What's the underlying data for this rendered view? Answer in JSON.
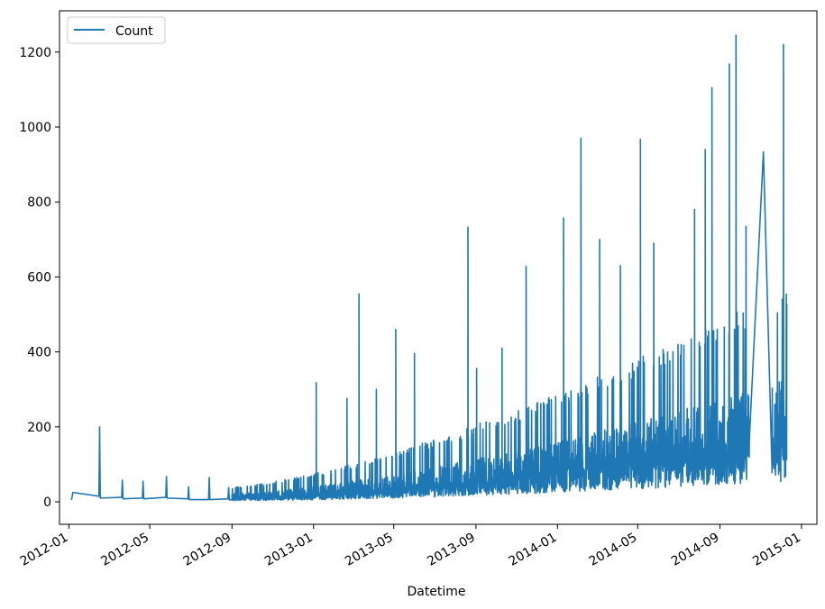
{
  "chart_data": {
    "type": "line",
    "title": "",
    "xlabel": "Datetime",
    "ylabel": "",
    "x_ticks": [
      "2012-01",
      "2012-05",
      "2012-09",
      "2013-01",
      "2013-05",
      "2013-09",
      "2014-01",
      "2014-05",
      "2014-09",
      "2015-01"
    ],
    "y_ticks": [
      0,
      200,
      400,
      600,
      800,
      1000,
      1200
    ],
    "ylim": [
      -60,
      1310
    ],
    "xlim": [
      "2011-12-18",
      "2015-01-24"
    ],
    "legend": {
      "position": "top-left",
      "entries": [
        "Count"
      ]
    },
    "grid": false,
    "colors": {
      "series": "#1f77b4",
      "axes": "#000000"
    },
    "series": [
      {
        "name": "Count",
        "description": "Hourly counts; sparse early 2012, dense and rising from 2013 to late 2014",
        "sparse_points": [
          [
            "2012-01-07",
            25
          ],
          [
            "2012-02-15",
            15
          ],
          [
            "2012-02-16",
            200
          ],
          [
            "2012-02-17",
            10
          ],
          [
            "2012-03-20",
            12
          ],
          [
            "2012-03-21",
            58
          ],
          [
            "2012-03-22",
            8
          ],
          [
            "2012-04-20",
            10
          ],
          [
            "2012-04-21",
            55
          ],
          [
            "2012-04-22",
            8
          ],
          [
            "2012-05-25",
            12
          ],
          [
            "2012-05-26",
            68
          ],
          [
            "2012-05-27",
            10
          ],
          [
            "2012-06-27",
            8
          ],
          [
            "2012-06-28",
            40
          ],
          [
            "2012-06-29",
            6
          ],
          [
            "2012-07-28",
            6
          ],
          [
            "2012-07-29",
            65
          ],
          [
            "2012-07-30",
            6
          ],
          [
            "2012-08-26",
            8
          ],
          [
            "2012-08-27",
            38
          ],
          [
            "2012-08-28",
            5
          ]
        ],
        "peaks": [
          [
            "2013-01-05",
            318
          ],
          [
            "2013-02-20",
            276
          ],
          [
            "2013-03-10",
            555
          ],
          [
            "2013-04-05",
            300
          ],
          [
            "2013-05-04",
            460
          ],
          [
            "2013-06-01",
            396
          ],
          [
            "2013-08-20",
            733
          ],
          [
            "2013-09-02",
            356
          ],
          [
            "2013-10-10",
            410
          ],
          [
            "2013-11-15",
            628
          ],
          [
            "2014-01-10",
            757
          ],
          [
            "2014-02-05",
            970
          ],
          [
            "2014-03-05",
            700
          ],
          [
            "2014-04-05",
            630
          ],
          [
            "2014-05-05",
            967
          ],
          [
            "2014-05-25",
            690
          ],
          [
            "2014-07-25",
            780
          ],
          [
            "2014-08-10",
            940
          ],
          [
            "2014-08-20",
            1105
          ],
          [
            "2014-09-15",
            1168
          ],
          [
            "2014-09-25",
            1245
          ],
          [
            "2014-10-10",
            735
          ],
          [
            "2014-11-05",
            934
          ],
          [
            "2014-12-05",
            1220
          ]
        ]
      }
    ]
  }
}
